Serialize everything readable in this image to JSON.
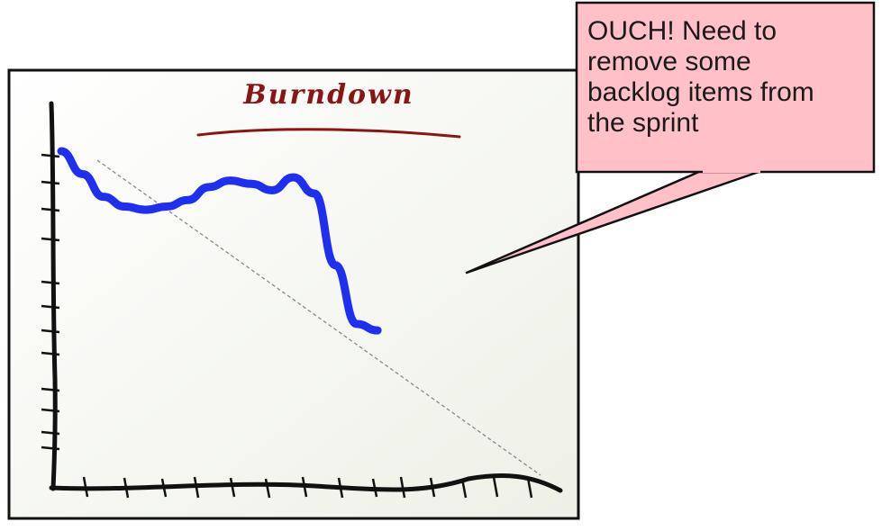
{
  "chart_data": {
    "type": "line",
    "title": "Burndown",
    "xlabel": "",
    "ylabel": "",
    "series": [
      {
        "values": [
          10,
          9.3,
          8.6,
          8.3,
          8.2,
          8.3,
          8.5,
          8.9,
          9.1,
          9.0,
          8.8,
          9.2,
          8.7,
          6.5,
          4.7,
          4.5
        ]
      },
      {
        "values": [
          10,
          0
        ]
      }
    ],
    "colors": {
      "actual": "#1f2ff0",
      "ideal": "#888888",
      "title": "#8b1414"
    }
  },
  "callout": {
    "text": "OUCH! Need to\nremove some\nbacklog items from\nthe sprint",
    "fill": "#ffc0c8"
  },
  "icons": [
    "x-axis-ticks",
    "y-axis-ticks"
  ]
}
